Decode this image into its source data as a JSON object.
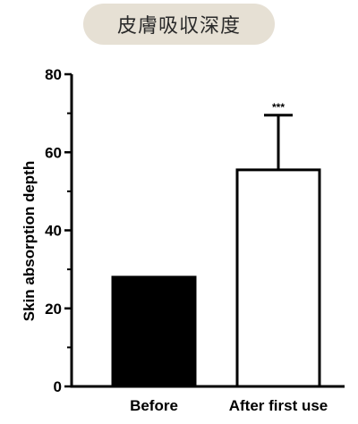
{
  "header": {
    "title": "皮膚吸収深度"
  },
  "chart_data": {
    "type": "bar",
    "title": "",
    "xlabel": "",
    "ylabel": "Skin absorption depth",
    "ylim": [
      0,
      80
    ],
    "yticks": [
      "0",
      "20",
      "40",
      "60",
      "80"
    ],
    "categories": [
      "Before",
      "After first use"
    ],
    "values": [
      28,
      55.5
    ],
    "error_upper": [
      0.5,
      14
    ],
    "annotations": [
      "",
      "***"
    ],
    "bar_fills": [
      "#000000",
      "#ffffff"
    ],
    "grid": false
  }
}
